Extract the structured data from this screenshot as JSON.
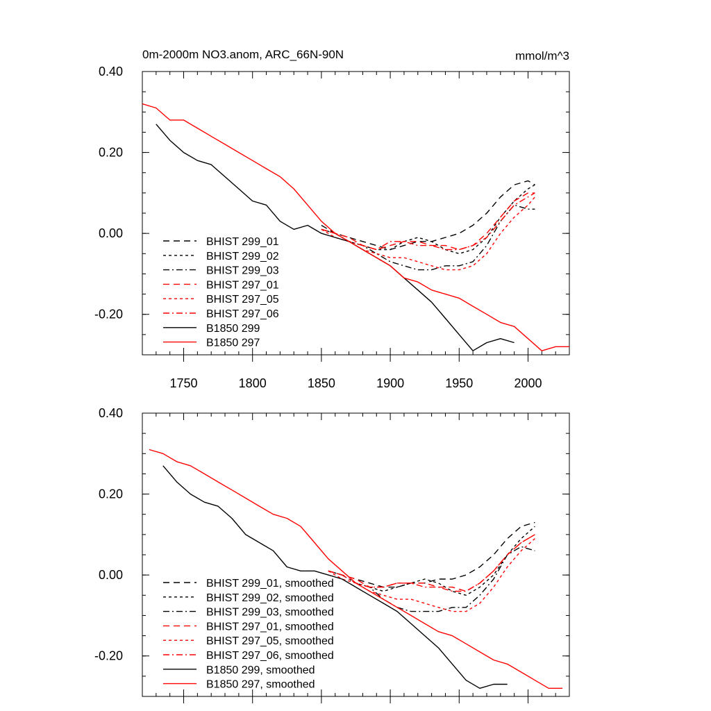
{
  "chart_data": [
    {
      "type": "line",
      "title": "0m-2000m NO3.anom, ARC_66N-90N",
      "units": "mmol/m^3",
      "xlim": [
        1720,
        2030
      ],
      "ylim": [
        -0.3,
        0.4
      ],
      "yticks": [
        "0.40",
        "0.20",
        "0.00",
        "-0.20"
      ],
      "xticks": [
        "1750",
        "1800",
        "1850",
        "1900",
        "1950",
        "2000"
      ],
      "xtick_values": [
        1750,
        1800,
        1850,
        1900,
        1950,
        2000
      ],
      "ytick_values": [
        0.4,
        0.2,
        0.0,
        -0.2
      ],
      "series": [
        {
          "name": "BHIST 299_01",
          "color": "#000000",
          "dash": "long-dash",
          "x": [
            1850,
            1860,
            1870,
            1880,
            1890,
            1900,
            1910,
            1920,
            1930,
            1940,
            1950,
            1960,
            1970,
            1980,
            1990,
            2000,
            2005
          ],
          "y": [
            0.02,
            0.0,
            -0.01,
            -0.02,
            -0.03,
            -0.04,
            -0.03,
            -0.02,
            -0.02,
            -0.01,
            0.0,
            0.02,
            0.05,
            0.09,
            0.12,
            0.13,
            0.12
          ]
        },
        {
          "name": "BHIST 299_02",
          "color": "#000000",
          "dash": "short-dash",
          "x": [
            1850,
            1860,
            1870,
            1880,
            1890,
            1900,
            1910,
            1920,
            1930,
            1940,
            1950,
            1960,
            1970,
            1980,
            1990,
            2000,
            2005
          ],
          "y": [
            0.01,
            0.0,
            -0.02,
            -0.03,
            -0.04,
            -0.04,
            -0.02,
            -0.01,
            -0.02,
            -0.04,
            -0.05,
            -0.04,
            -0.01,
            0.04,
            0.08,
            0.11,
            0.12
          ]
        },
        {
          "name": "BHIST 299_03",
          "color": "#000000",
          "dash": "dash-dot",
          "x": [
            1850,
            1860,
            1870,
            1880,
            1890,
            1900,
            1910,
            1920,
            1930,
            1940,
            1950,
            1960,
            1970,
            1980,
            1990,
            2000,
            2005
          ],
          "y": [
            0.01,
            0.0,
            -0.02,
            -0.03,
            -0.05,
            -0.07,
            -0.08,
            -0.09,
            -0.09,
            -0.08,
            -0.08,
            -0.07,
            -0.03,
            0.03,
            0.07,
            0.06,
            0.06
          ]
        },
        {
          "name": "BHIST 297_01",
          "color": "#ff0000",
          "dash": "long-dash",
          "x": [
            1850,
            1860,
            1870,
            1880,
            1890,
            1900,
            1910,
            1920,
            1930,
            1940,
            1950,
            1960,
            1970,
            1980,
            1990,
            2000,
            2005
          ],
          "y": [
            0.01,
            0.0,
            -0.01,
            -0.03,
            -0.04,
            -0.03,
            -0.02,
            -0.02,
            -0.03,
            -0.03,
            -0.04,
            -0.03,
            0.0,
            0.04,
            0.08,
            0.1,
            0.1
          ]
        },
        {
          "name": "BHIST 297_05",
          "color": "#ff0000",
          "dash": "short-dash",
          "x": [
            1850,
            1860,
            1870,
            1880,
            1890,
            1900,
            1910,
            1920,
            1930,
            1940,
            1950,
            1960,
            1970,
            1980,
            1990,
            2000,
            2005
          ],
          "y": [
            0.01,
            -0.01,
            -0.02,
            -0.04,
            -0.05,
            -0.06,
            -0.06,
            -0.07,
            -0.08,
            -0.09,
            -0.09,
            -0.08,
            -0.05,
            0.0,
            0.04,
            0.07,
            0.09
          ]
        },
        {
          "name": "BHIST 297_06",
          "color": "#ff0000",
          "dash": "dash-dot",
          "x": [
            1850,
            1860,
            1870,
            1880,
            1890,
            1900,
            1910,
            1920,
            1930,
            1940,
            1950,
            1960,
            1970,
            1980,
            1990,
            2000,
            2005
          ],
          "y": [
            0.01,
            0.0,
            -0.02,
            -0.03,
            -0.04,
            -0.02,
            -0.02,
            -0.03,
            -0.03,
            -0.04,
            -0.04,
            -0.03,
            -0.01,
            0.03,
            0.07,
            0.09,
            0.1
          ]
        },
        {
          "name": "B1850 299",
          "color": "#000000",
          "dash": "solid",
          "x": [
            1730,
            1740,
            1750,
            1760,
            1770,
            1780,
            1790,
            1800,
            1810,
            1820,
            1830,
            1840,
            1850,
            1860,
            1870,
            1880,
            1890,
            1900,
            1910,
            1920,
            1930,
            1940,
            1950,
            1960,
            1970,
            1980,
            1990
          ],
          "y": [
            0.27,
            0.23,
            0.2,
            0.18,
            0.17,
            0.14,
            0.11,
            0.08,
            0.07,
            0.03,
            0.01,
            0.02,
            0.0,
            -0.01,
            -0.02,
            -0.04,
            -0.06,
            -0.08,
            -0.11,
            -0.14,
            -0.17,
            -0.21,
            -0.25,
            -0.29,
            -0.27,
            -0.26,
            -0.27
          ]
        },
        {
          "name": "B1850 297",
          "color": "#ff0000",
          "dash": "solid",
          "x": [
            1720,
            1730,
            1740,
            1750,
            1760,
            1770,
            1780,
            1790,
            1800,
            1810,
            1820,
            1830,
            1840,
            1850,
            1860,
            1870,
            1880,
            1890,
            1900,
            1910,
            1920,
            1930,
            1940,
            1950,
            1960,
            1970,
            1980,
            1990,
            2000,
            2010,
            2020,
            2030
          ],
          "y": [
            0.32,
            0.31,
            0.28,
            0.28,
            0.26,
            0.24,
            0.22,
            0.2,
            0.18,
            0.16,
            0.14,
            0.11,
            0.07,
            0.03,
            0.0,
            -0.02,
            -0.04,
            -0.06,
            -0.08,
            -0.11,
            -0.12,
            -0.14,
            -0.15,
            -0.16,
            -0.18,
            -0.2,
            -0.22,
            -0.23,
            -0.26,
            -0.29,
            -0.28,
            -0.28
          ]
        }
      ]
    },
    {
      "type": "line",
      "xlim": [
        1720,
        2030
      ],
      "ylim": [
        -0.3,
        0.4
      ],
      "yticks": [
        "0.40",
        "0.20",
        "0.00",
        "-0.20"
      ],
      "ytick_values": [
        0.4,
        0.2,
        0.0,
        -0.2
      ],
      "series": [
        {
          "name": "BHIST 299_01, smoothed",
          "color": "#000000",
          "dash": "long-dash",
          "x": [
            1855,
            1865,
            1875,
            1885,
            1895,
            1905,
            1915,
            1925,
            1935,
            1945,
            1955,
            1965,
            1975,
            1985,
            1995,
            2005
          ],
          "y": [
            0.01,
            0.0,
            -0.01,
            -0.02,
            -0.03,
            -0.03,
            -0.02,
            -0.02,
            -0.01,
            -0.01,
            0.0,
            0.02,
            0.05,
            0.09,
            0.12,
            0.13
          ]
        },
        {
          "name": "BHIST 299_02, smoothed",
          "color": "#000000",
          "dash": "short-dash",
          "x": [
            1855,
            1865,
            1875,
            1885,
            1895,
            1905,
            1915,
            1925,
            1935,
            1945,
            1955,
            1965,
            1975,
            1985,
            1995,
            2005
          ],
          "y": [
            0.01,
            0.0,
            -0.02,
            -0.03,
            -0.04,
            -0.03,
            -0.02,
            -0.01,
            -0.02,
            -0.04,
            -0.05,
            -0.03,
            0.0,
            0.05,
            0.09,
            0.12
          ]
        },
        {
          "name": "BHIST 299_03, smoothed",
          "color": "#000000",
          "dash": "dash-dot",
          "x": [
            1855,
            1865,
            1875,
            1885,
            1895,
            1905,
            1915,
            1925,
            1935,
            1945,
            1955,
            1965,
            1975,
            1985,
            1995,
            2005
          ],
          "y": [
            0.01,
            0.0,
            -0.02,
            -0.03,
            -0.06,
            -0.08,
            -0.09,
            -0.09,
            -0.09,
            -0.08,
            -0.08,
            -0.05,
            -0.01,
            0.05,
            0.07,
            0.06
          ]
        },
        {
          "name": "BHIST 297_01, smoothed",
          "color": "#ff0000",
          "dash": "long-dash",
          "x": [
            1855,
            1865,
            1875,
            1885,
            1895,
            1905,
            1915,
            1925,
            1935,
            1945,
            1955,
            1965,
            1975,
            1985,
            1995,
            2005
          ],
          "y": [
            0.01,
            0.0,
            -0.01,
            -0.03,
            -0.03,
            -0.02,
            -0.02,
            -0.02,
            -0.03,
            -0.03,
            -0.04,
            -0.02,
            0.01,
            0.05,
            0.08,
            0.1
          ]
        },
        {
          "name": "BHIST 297_05, smoothed",
          "color": "#ff0000",
          "dash": "short-dash",
          "x": [
            1855,
            1865,
            1875,
            1885,
            1895,
            1905,
            1915,
            1925,
            1935,
            1945,
            1955,
            1965,
            1975,
            1985,
            1995,
            2005
          ],
          "y": [
            0.01,
            -0.01,
            -0.02,
            -0.04,
            -0.05,
            -0.06,
            -0.06,
            -0.07,
            -0.08,
            -0.09,
            -0.09,
            -0.07,
            -0.03,
            0.02,
            0.06,
            0.09
          ]
        },
        {
          "name": "BHIST 297_06, smoothed",
          "color": "#ff0000",
          "dash": "dash-dot",
          "x": [
            1855,
            1865,
            1875,
            1885,
            1895,
            1905,
            1915,
            1925,
            1935,
            1945,
            1955,
            1965,
            1975,
            1985,
            1995,
            2005
          ],
          "y": [
            0.01,
            0.0,
            -0.02,
            -0.03,
            -0.03,
            -0.02,
            -0.02,
            -0.03,
            -0.03,
            -0.04,
            -0.04,
            -0.02,
            0.01,
            0.05,
            0.08,
            0.1
          ]
        },
        {
          "name": "B1850 299, smoothed",
          "color": "#000000",
          "dash": "solid",
          "x": [
            1735,
            1745,
            1755,
            1765,
            1775,
            1785,
            1795,
            1805,
            1815,
            1825,
            1835,
            1845,
            1855,
            1865,
            1875,
            1885,
            1895,
            1905,
            1915,
            1925,
            1935,
            1945,
            1955,
            1965,
            1975,
            1985
          ],
          "y": [
            0.27,
            0.23,
            0.2,
            0.18,
            0.17,
            0.14,
            0.1,
            0.08,
            0.06,
            0.02,
            0.01,
            0.01,
            0.0,
            -0.01,
            -0.03,
            -0.05,
            -0.07,
            -0.09,
            -0.12,
            -0.15,
            -0.18,
            -0.22,
            -0.26,
            -0.28,
            -0.27,
            -0.27
          ]
        },
        {
          "name": "B1850 297, smoothed",
          "color": "#ff0000",
          "dash": "solid",
          "x": [
            1725,
            1735,
            1745,
            1755,
            1765,
            1775,
            1785,
            1795,
            1805,
            1815,
            1825,
            1835,
            1845,
            1855,
            1865,
            1875,
            1885,
            1895,
            1905,
            1915,
            1925,
            1935,
            1945,
            1955,
            1965,
            1975,
            1985,
            1995,
            2005,
            2015,
            2025
          ],
          "y": [
            0.31,
            0.3,
            0.28,
            0.27,
            0.25,
            0.23,
            0.21,
            0.19,
            0.17,
            0.15,
            0.14,
            0.12,
            0.08,
            0.04,
            0.01,
            -0.02,
            -0.04,
            -0.06,
            -0.08,
            -0.1,
            -0.12,
            -0.14,
            -0.15,
            -0.17,
            -0.19,
            -0.21,
            -0.22,
            -0.24,
            -0.26,
            -0.28,
            -0.28
          ]
        }
      ]
    }
  ]
}
